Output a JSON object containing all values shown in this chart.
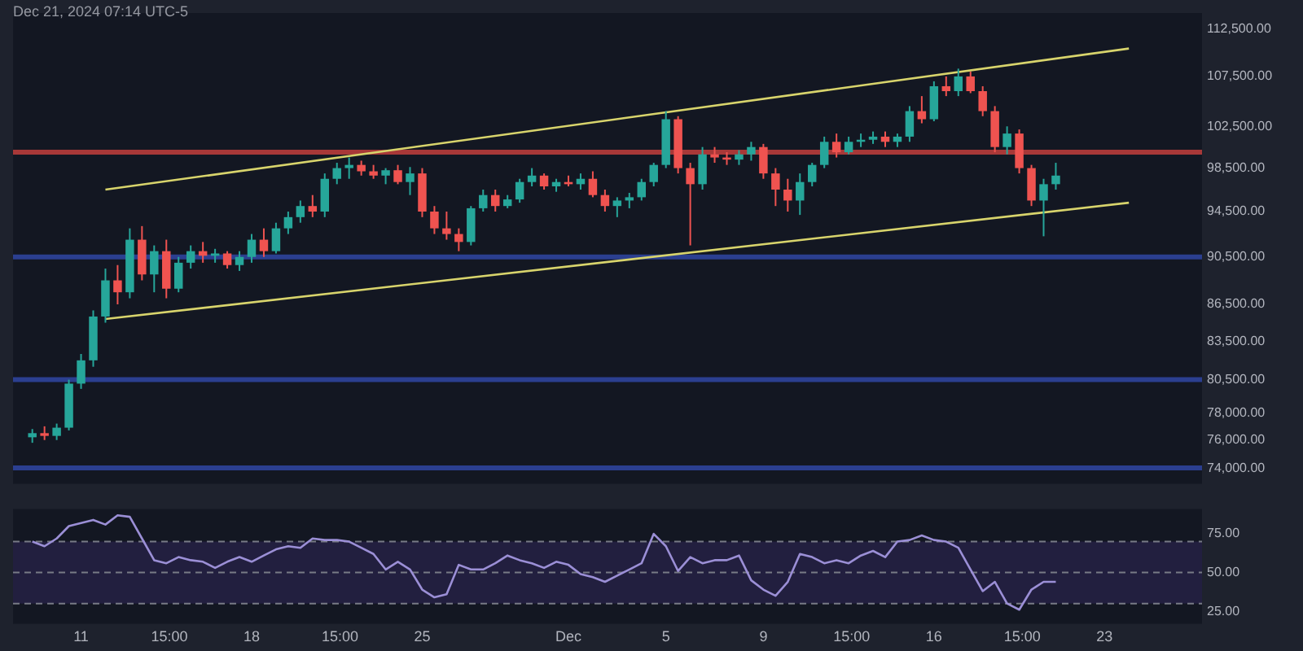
{
  "chart_data": [
    {
      "type": "candlestick",
      "annotations": [
        "Dec 21, 2024 07:14 UTC-5"
      ],
      "x": [
        "2024-11-09T00:00",
        "2024-11-09T12:00",
        "2024-11-10T00:00",
        "2024-11-10T12:00",
        "2024-11-11T00:00",
        "2024-11-11T12:00",
        "2024-11-12T00:00",
        "2024-11-12T12:00",
        "2024-11-13T00:00",
        "2024-11-13T12:00",
        "2024-11-14T00:00",
        "2024-11-14T12:00",
        "2024-11-15T00:00",
        "2024-11-15T12:00",
        "2024-11-16T00:00",
        "2024-11-16T12:00",
        "2024-11-17T00:00",
        "2024-11-17T12:00",
        "2024-11-18T00:00",
        "2024-11-18T12:00",
        "2024-11-19T00:00",
        "2024-11-19T12:00",
        "2024-11-20T00:00",
        "2024-11-20T12:00",
        "2024-11-21T00:00",
        "2024-11-21T12:00",
        "2024-11-22T00:00",
        "2024-11-22T12:00",
        "2024-11-23T00:00",
        "2024-11-23T12:00",
        "2024-11-24T00:00",
        "2024-11-24T12:00",
        "2024-11-25T00:00",
        "2024-11-25T12:00",
        "2024-11-26T00:00",
        "2024-11-26T12:00",
        "2024-11-27T00:00",
        "2024-11-27T12:00",
        "2024-11-28T00:00",
        "2024-11-28T12:00",
        "2024-11-29T00:00",
        "2024-11-29T12:00",
        "2024-11-30T00:00",
        "2024-11-30T12:00",
        "2024-12-01T00:00",
        "2024-12-01T12:00",
        "2024-12-02T00:00",
        "2024-12-02T12:00",
        "2024-12-03T00:00",
        "2024-12-03T12:00",
        "2024-12-04T00:00",
        "2024-12-04T12:00",
        "2024-12-05T00:00",
        "2024-12-05T12:00",
        "2024-12-06T00:00",
        "2024-12-06T12:00",
        "2024-12-07T00:00",
        "2024-12-07T12:00",
        "2024-12-08T00:00",
        "2024-12-08T12:00",
        "2024-12-09T00:00",
        "2024-12-09T12:00",
        "2024-12-10T00:00",
        "2024-12-10T12:00",
        "2024-12-11T00:00",
        "2024-12-11T12:00",
        "2024-12-12T00:00",
        "2024-12-12T12:00",
        "2024-12-13T00:00",
        "2024-12-13T12:00",
        "2024-12-14T00:00",
        "2024-12-14T12:00",
        "2024-12-15T00:00",
        "2024-12-15T12:00",
        "2024-12-16T00:00",
        "2024-12-16T12:00",
        "2024-12-17T00:00",
        "2024-12-17T12:00",
        "2024-12-18T00:00",
        "2024-12-18T12:00",
        "2024-12-19T00:00",
        "2024-12-19T12:00",
        "2024-12-20T00:00",
        "2024-12-20T12:00",
        "2024-12-21T00:00"
      ],
      "ohlc": [
        [
          76200,
          76800,
          75800,
          76500
        ],
        [
          76500,
          77000,
          76000,
          76300
        ],
        [
          76300,
          77200,
          76000,
          76900
        ],
        [
          76900,
          80500,
          76700,
          80200
        ],
        [
          80200,
          82500,
          79800,
          82000
        ],
        [
          82000,
          86000,
          81500,
          85500
        ],
        [
          85500,
          89500,
          85000,
          88500
        ],
        [
          88500,
          89800,
          86500,
          87500
        ],
        [
          87500,
          93000,
          87000,
          92000
        ],
        [
          92000,
          93200,
          88500,
          89000
        ],
        [
          89000,
          91500,
          87500,
          91000
        ],
        [
          91000,
          92000,
          87000,
          87800
        ],
        [
          87800,
          90500,
          87500,
          90000
        ],
        [
          90000,
          91500,
          89500,
          91000
        ],
        [
          91000,
          91800,
          90000,
          90600
        ],
        [
          90600,
          91200,
          90000,
          90800
        ],
        [
          90800,
          91000,
          89500,
          89800
        ],
        [
          89800,
          91000,
          89300,
          90500
        ],
        [
          90500,
          92500,
          90000,
          92000
        ],
        [
          92000,
          93000,
          90500,
          91000
        ],
        [
          91000,
          93500,
          90800,
          93000
        ],
        [
          93000,
          94500,
          92500,
          94000
        ],
        [
          94000,
          95500,
          93500,
          95000
        ],
        [
          95000,
          96000,
          94000,
          94500
        ],
        [
          94500,
          98000,
          94000,
          97500
        ],
        [
          97500,
          99000,
          97000,
          98500
        ],
        [
          98500,
          99500,
          97500,
          98800
        ],
        [
          98800,
          99200,
          97800,
          98200
        ],
        [
          98200,
          98800,
          97500,
          97800
        ],
        [
          97800,
          98500,
          97000,
          98300
        ],
        [
          98300,
          98800,
          97000,
          97200
        ],
        [
          97200,
          98600,
          96000,
          98000
        ],
        [
          98000,
          98500,
          94000,
          94500
        ],
        [
          94500,
          95000,
          92500,
          93000
        ],
        [
          93000,
          94500,
          92000,
          92500
        ],
        [
          92500,
          93000,
          91000,
          91800
        ],
        [
          91800,
          95000,
          91500,
          94800
        ],
        [
          94800,
          96500,
          94500,
          96000
        ],
        [
          96000,
          96500,
          94500,
          95000
        ],
        [
          95000,
          96000,
          94800,
          95600
        ],
        [
          95600,
          97500,
          95300,
          97200
        ],
        [
          97200,
          98500,
          96800,
          97800
        ],
        [
          97800,
          98000,
          96500,
          96800
        ],
        [
          96800,
          97500,
          96300,
          97200
        ],
        [
          97200,
          97800,
          96800,
          97000
        ],
        [
          97000,
          98000,
          96500,
          97500
        ],
        [
          97500,
          98200,
          95800,
          96000
        ],
        [
          96000,
          96500,
          94500,
          95000
        ],
        [
          95000,
          95800,
          94000,
          95500
        ],
        [
          95500,
          96200,
          94800,
          95800
        ],
        [
          95800,
          97500,
          95500,
          97200
        ],
        [
          97200,
          99000,
          96800,
          98800
        ],
        [
          98800,
          104000,
          98500,
          103200
        ],
        [
          103200,
          103500,
          98000,
          98500
        ],
        [
          98500,
          99000,
          91500,
          97000
        ],
        [
          97000,
          100500,
          96500,
          99800
        ],
        [
          99800,
          100500,
          99000,
          99500
        ],
        [
          99500,
          100000,
          98800,
          99300
        ],
        [
          99300,
          100200,
          98800,
          99800
        ],
        [
          99800,
          101000,
          99200,
          100500
        ],
        [
          100500,
          100800,
          97500,
          98000
        ],
        [
          98000,
          98500,
          95000,
          96500
        ],
        [
          96500,
          97500,
          94500,
          95500
        ],
        [
          95500,
          98000,
          94200,
          97200
        ],
        [
          97200,
          99000,
          96800,
          98800
        ],
        [
          98800,
          101500,
          98500,
          101000
        ],
        [
          101000,
          101800,
          99500,
          100000
        ],
        [
          100000,
          101500,
          99800,
          101000
        ],
        [
          101000,
          101800,
          100500,
          101200
        ],
        [
          101200,
          102000,
          100800,
          101500
        ],
        [
          101500,
          102000,
          100500,
          101000
        ],
        [
          101000,
          101800,
          100500,
          101500
        ],
        [
          101500,
          104500,
          101000,
          104000
        ],
        [
          104000,
          105500,
          102800,
          103200
        ],
        [
          103200,
          107000,
          103000,
          106500
        ],
        [
          106500,
          107500,
          105500,
          106000
        ],
        [
          106000,
          108300,
          105500,
          107500
        ],
        [
          107500,
          108000,
          105800,
          106000
        ],
        [
          106000,
          106500,
          103500,
          104000
        ],
        [
          104000,
          104500,
          100000,
          100500
        ],
        [
          100500,
          102500,
          99800,
          101800
        ],
        [
          101800,
          102200,
          98000,
          98500
        ],
        [
          98500,
          98800,
          95000,
          95500
        ],
        [
          95500,
          97500,
          92300,
          97000
        ],
        [
          97000,
          99000,
          96500,
          97800
        ]
      ],
      "series": [
        {
          "type": "line",
          "color": "#d8d46c",
          "x": [
            "2024-11-12T00:00",
            "2024-12-24T00:00"
          ],
          "values": [
            96500,
            110400
          ]
        },
        {
          "type": "line",
          "color": "#d8d46c",
          "x": [
            "2024-11-12T00:00",
            "2024-12-24T00:00"
          ],
          "values": [
            85300,
            95300
          ]
        }
      ],
      "ref_lines": [
        {
          "axis": "y",
          "value": 100000,
          "color": "#a83838"
        },
        {
          "axis": "y",
          "value": 90500,
          "color": "#2b3f90"
        },
        {
          "axis": "y",
          "value": 80500,
          "color": "#2b3f90"
        },
        {
          "axis": "y",
          "value": 74000,
          "color": "#2b3f90"
        }
      ],
      "log": true,
      "tick_labels": "y",
      "xlim": [
        "2024-11-08T05:00",
        "2024-12-27T00:00"
      ],
      "ylim": [
        72900,
        114200
      ],
      "yticks": [
        {
          "value": 112500,
          "label": "112,500.00"
        },
        {
          "value": 107500,
          "label": "107,500.00"
        },
        {
          "value": 102500,
          "label": "102,500.00"
        },
        {
          "value": 98500,
          "label": "98,500.00"
        },
        {
          "value": 94500,
          "label": "94,500.00"
        },
        {
          "value": 90500,
          "label": "90,500.00"
        },
        {
          "value": 86500,
          "label": "86,500.00"
        },
        {
          "value": 83500,
          "label": "83,500.00"
        },
        {
          "value": 80500,
          "label": "80,500.00"
        },
        {
          "value": 78000,
          "label": "78,000.00"
        },
        {
          "value": 76000,
          "label": "76,000.00"
        },
        {
          "value": 74000,
          "label": "74,000.00"
        }
      ]
    },
    {
      "type": "line",
      "x": [
        "2024-11-09T00:00",
        "2024-11-09T12:00",
        "2024-11-10T00:00",
        "2024-11-10T12:00",
        "2024-11-11T00:00",
        "2024-11-11T12:00",
        "2024-11-12T00:00",
        "2024-11-12T12:00",
        "2024-11-13T00:00",
        "2024-11-13T12:00",
        "2024-11-14T00:00",
        "2024-11-14T12:00",
        "2024-11-15T00:00",
        "2024-11-15T12:00",
        "2024-11-16T00:00",
        "2024-11-16T12:00",
        "2024-11-17T00:00",
        "2024-11-17T12:00",
        "2024-11-18T00:00",
        "2024-11-18T12:00",
        "2024-11-19T00:00",
        "2024-11-19T12:00",
        "2024-11-20T00:00",
        "2024-11-20T12:00",
        "2024-11-21T00:00",
        "2024-11-21T12:00",
        "2024-11-22T00:00",
        "2024-11-22T12:00",
        "2024-11-23T00:00",
        "2024-11-23T12:00",
        "2024-11-24T00:00",
        "2024-11-24T12:00",
        "2024-11-25T00:00",
        "2024-11-25T12:00",
        "2024-11-26T00:00",
        "2024-11-26T12:00",
        "2024-11-27T00:00",
        "2024-11-27T12:00",
        "2024-11-28T00:00",
        "2024-11-28T12:00",
        "2024-11-29T00:00",
        "2024-11-29T12:00",
        "2024-11-30T00:00",
        "2024-11-30T12:00",
        "2024-12-01T00:00",
        "2024-12-01T12:00",
        "2024-12-02T00:00",
        "2024-12-02T12:00",
        "2024-12-03T00:00",
        "2024-12-03T12:00",
        "2024-12-04T00:00",
        "2024-12-04T12:00",
        "2024-12-05T00:00",
        "2024-12-05T12:00",
        "2024-12-06T00:00",
        "2024-12-06T12:00",
        "2024-12-07T00:00",
        "2024-12-07T12:00",
        "2024-12-08T00:00",
        "2024-12-08T12:00",
        "2024-12-09T00:00",
        "2024-12-09T12:00",
        "2024-12-10T00:00",
        "2024-12-10T12:00",
        "2024-12-11T00:00",
        "2024-12-11T12:00",
        "2024-12-12T00:00",
        "2024-12-12T12:00",
        "2024-12-13T00:00",
        "2024-12-13T12:00",
        "2024-12-14T00:00",
        "2024-12-14T12:00",
        "2024-12-15T00:00",
        "2024-12-15T12:00",
        "2024-12-16T00:00",
        "2024-12-16T12:00",
        "2024-12-17T00:00",
        "2024-12-17T12:00",
        "2024-12-18T00:00",
        "2024-12-18T12:00",
        "2024-12-19T00:00",
        "2024-12-19T12:00",
        "2024-12-20T00:00",
        "2024-12-20T12:00",
        "2024-12-21T00:00"
      ],
      "series": [
        {
          "color": "#9b8fd6",
          "values": [
            70,
            67,
            72,
            80,
            82,
            84,
            81,
            87,
            86,
            72,
            58,
            56,
            60,
            58,
            57,
            53,
            57,
            60,
            57,
            61,
            65,
            67,
            66,
            72,
            71,
            71,
            70,
            66,
            62,
            52,
            57,
            52,
            39,
            34,
            36,
            55,
            52,
            52,
            56,
            61,
            58,
            56,
            53,
            57,
            55,
            49,
            47,
            44,
            48,
            52,
            56,
            75,
            67,
            51,
            60,
            56,
            58,
            58,
            61,
            45,
            39,
            35,
            44,
            62,
            60,
            56,
            58,
            56,
            61,
            64,
            60,
            70,
            71,
            74,
            71,
            70,
            66,
            52,
            38,
            44,
            30,
            26,
            39,
            44,
            44
          ]
        }
      ],
      "ref_lines": [
        {
          "axis": "y",
          "value": 70,
          "color": "#787b86",
          "line_style": "dashed"
        },
        {
          "axis": "y",
          "value": 50,
          "color": "#787b86",
          "line_style": "dashed"
        },
        {
          "axis": "y",
          "value": 30,
          "color": "#787b86",
          "line_style": "dashed"
        }
      ],
      "bands": [
        {
          "axis": "y",
          "from": 30,
          "to": 70,
          "color": "#221f3f"
        }
      ],
      "xlim": [
        "2024-11-08T05:00",
        "2024-12-27T00:00"
      ],
      "xticks": [
        {
          "value": "2024-11-11T00:00",
          "label": "11"
        },
        {
          "value": "2024-11-14T15:00",
          "label": "15:00"
        },
        {
          "value": "2024-11-18T00:00",
          "label": "18"
        },
        {
          "value": "2024-11-21T15:00",
          "label": "15:00"
        },
        {
          "value": "2024-11-25T00:00",
          "label": "25"
        },
        {
          "value": "2024-12-01T00:00",
          "label": "Dec"
        },
        {
          "value": "2024-12-05T00:00",
          "label": "5"
        },
        {
          "value": "2024-12-09T00:00",
          "label": "9"
        },
        {
          "value": "2024-12-12T15:00",
          "label": "15:00"
        },
        {
          "value": "2024-12-16T00:00",
          "label": "16"
        },
        {
          "value": "2024-12-19T15:00",
          "label": "15:00"
        },
        {
          "value": "2024-12-23T00:00",
          "label": "23"
        }
      ],
      "ylim": [
        17,
        91
      ],
      "yticks": [
        {
          "value": 75,
          "label": "75.00"
        },
        {
          "value": 50,
          "label": "50.00"
        },
        {
          "value": 25,
          "label": "25.00"
        }
      ]
    }
  ]
}
